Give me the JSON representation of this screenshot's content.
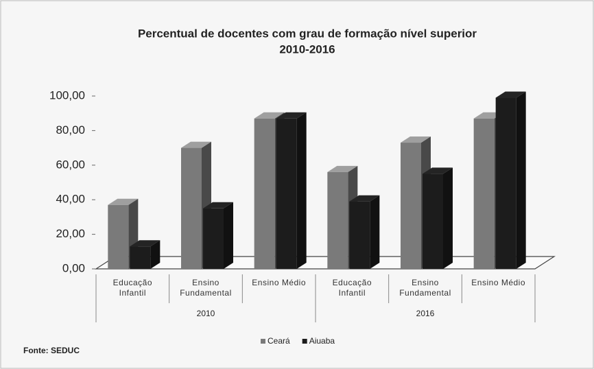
{
  "chart_data": {
    "type": "bar3d",
    "title": "Percentual de docentes com grau de formação nível superior",
    "subtitle": "2010-2016",
    "categories": [
      "Educação Infantil",
      "Ensino Fundamental",
      "Ensino Médio",
      "Educação Infantil",
      "Ensino Fundamental",
      "Ensino Médio"
    ],
    "groups": [
      "2010",
      "2016"
    ],
    "series": [
      {
        "name": "Ceará",
        "color": "#7a7a7a",
        "values": [
          37,
          70,
          87,
          56,
          73,
          87
        ]
      },
      {
        "name": "Aiuaba",
        "color": "#1c1c1c",
        "values": [
          13,
          35,
          87,
          39,
          55,
          99
        ]
      }
    ],
    "ylim": [
      0,
      100
    ],
    "yticks": [
      {
        "value": 0,
        "label": "0,00"
      },
      {
        "value": 20,
        "label": "20,00"
      },
      {
        "value": 40,
        "label": "40,00"
      },
      {
        "value": 60,
        "label": "60,00"
      },
      {
        "value": 80,
        "label": "80,00"
      },
      {
        "value": 100,
        "label": "100,00"
      }
    ],
    "legend": "bottom",
    "source": "Fonte: SEDUC"
  }
}
